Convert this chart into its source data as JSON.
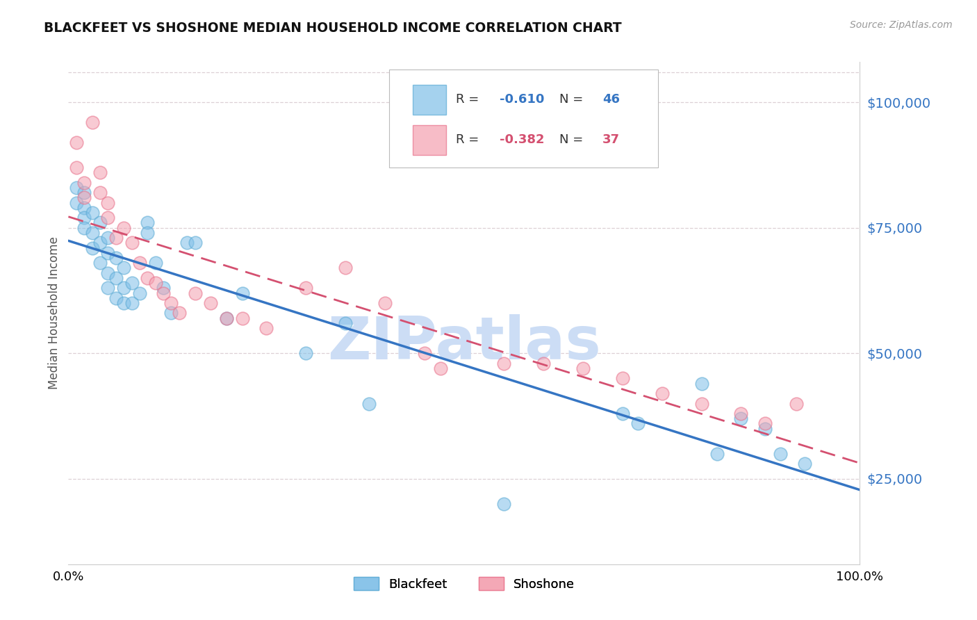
{
  "title": "BLACKFEET VS SHOSHONE MEDIAN HOUSEHOLD INCOME CORRELATION CHART",
  "source": "Source: ZipAtlas.com",
  "ylabel": "Median Household Income",
  "y_ticks": [
    25000,
    50000,
    75000,
    100000
  ],
  "y_tick_labels": [
    "$25,000",
    "$50,000",
    "$75,000",
    "$100,000"
  ],
  "x_min": 0.0,
  "x_max": 100.0,
  "y_min": 8000,
  "y_max": 108000,
  "blackfeet_R": -0.61,
  "blackfeet_N": 46,
  "shoshone_R": -0.382,
  "shoshone_N": 37,
  "blackfeet_color": "#7fbfe8",
  "shoshone_color": "#f4a0b0",
  "blackfeet_edge_color": "#5aaad4",
  "shoshone_edge_color": "#e8708a",
  "blackfeet_line_color": "#3575c3",
  "shoshone_line_color": "#d45070",
  "watermark": "ZIPatlas",
  "watermark_color": "#ccddf5",
  "blackfeet_x": [
    1,
    1,
    2,
    2,
    2,
    2,
    3,
    3,
    3,
    4,
    4,
    4,
    5,
    5,
    5,
    5,
    6,
    6,
    6,
    7,
    7,
    7,
    8,
    8,
    9,
    10,
    10,
    11,
    12,
    13,
    15,
    16,
    20,
    22,
    30,
    35,
    38,
    55,
    70,
    72,
    80,
    82,
    85,
    88,
    90,
    93
  ],
  "blackfeet_y": [
    83000,
    80000,
    82000,
    79000,
    77000,
    75000,
    78000,
    74000,
    71000,
    76000,
    72000,
    68000,
    73000,
    70000,
    66000,
    63000,
    69000,
    65000,
    61000,
    67000,
    63000,
    60000,
    64000,
    60000,
    62000,
    76000,
    74000,
    68000,
    63000,
    58000,
    72000,
    72000,
    57000,
    62000,
    50000,
    56000,
    40000,
    20000,
    38000,
    36000,
    44000,
    30000,
    37000,
    35000,
    30000,
    28000
  ],
  "shoshone_x": [
    1,
    1,
    2,
    2,
    3,
    4,
    4,
    5,
    5,
    6,
    7,
    8,
    9,
    10,
    11,
    12,
    13,
    14,
    16,
    18,
    20,
    22,
    25,
    30,
    35,
    40,
    45,
    47,
    55,
    60,
    65,
    70,
    75,
    80,
    85,
    88,
    92
  ],
  "shoshone_y": [
    92000,
    87000,
    84000,
    81000,
    96000,
    86000,
    82000,
    80000,
    77000,
    73000,
    75000,
    72000,
    68000,
    65000,
    64000,
    62000,
    60000,
    58000,
    62000,
    60000,
    57000,
    57000,
    55000,
    63000,
    67000,
    60000,
    50000,
    47000,
    48000,
    48000,
    47000,
    45000,
    42000,
    40000,
    38000,
    36000,
    40000
  ],
  "figsize": [
    14.06,
    8.92
  ],
  "dpi": 100
}
